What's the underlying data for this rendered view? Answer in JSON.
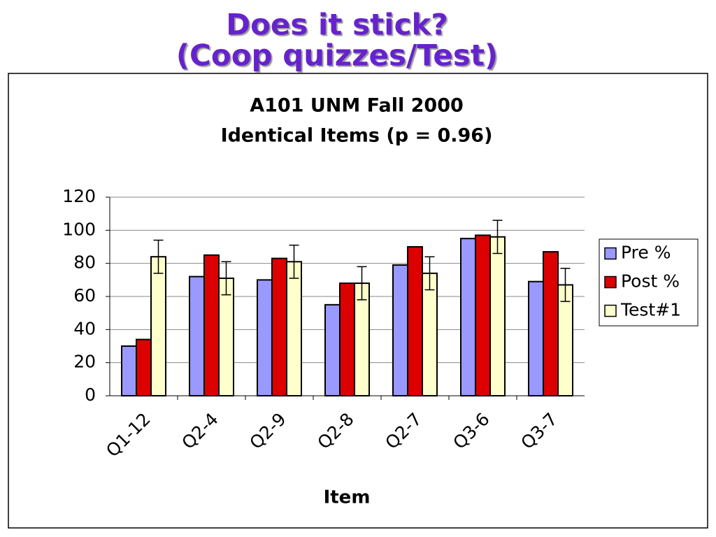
{
  "slide": {
    "title_lines": [
      "Does it stick?",
      "(Coop quizzes/Test)"
    ]
  },
  "chart_data": {
    "type": "bar",
    "title_lines": [
      "A101 UNM Fall 2000",
      "Identical Items (p = 0.96)"
    ],
    "x_label": "Item",
    "categories": [
      "Q1-12",
      "Q2-4",
      "Q2-9",
      "Q2-8",
      "Q2-7",
      "Q3-6",
      "Q3-7"
    ],
    "series": [
      {
        "name": "Pre %",
        "color": "#9999ff",
        "values": [
          30,
          72,
          70,
          55,
          79,
          95,
          69
        ]
      },
      {
        "name": "Post %",
        "color": "#dd0000",
        "values": [
          34,
          85,
          83,
          68,
          90,
          97,
          87
        ]
      },
      {
        "name": "Test#1",
        "color": "#ffffcc",
        "values": [
          84,
          71,
          81,
          68,
          74,
          96,
          67
        ],
        "errors": [
          10,
          10,
          10,
          10,
          10,
          10,
          10
        ]
      }
    ],
    "ylim": [
      0,
      120
    ],
    "yticks": [
      0,
      20,
      40,
      60,
      80,
      100,
      120
    ],
    "grid": true,
    "legend": "right"
  }
}
